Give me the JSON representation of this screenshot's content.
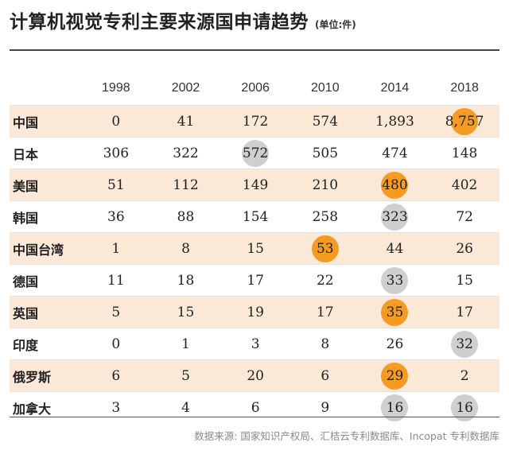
{
  "header": {
    "title": "计算机视觉专利主要来源国申请趋势",
    "unit": "(单位:件)"
  },
  "source": "数据来源: 国家知识产权局、汇桔云专利数据库、Incopat 专利数据库",
  "colors": {
    "band": "#fbe8d6",
    "highlight_orange": "#f59a23",
    "highlight_gray": "#cfcfcf"
  },
  "chart_data": {
    "type": "table",
    "title": "计算机视觉专利主要来源国申请趋势",
    "unit": "(单位:件)",
    "columns": [
      "1998",
      "2002",
      "2006",
      "2010",
      "2014",
      "2018"
    ],
    "rows": [
      {
        "name": "中国",
        "values": [
          "0",
          "41",
          "172",
          "574",
          "1,893",
          "8,757"
        ],
        "highlights": [
          null,
          null,
          null,
          null,
          null,
          "orange"
        ]
      },
      {
        "name": "日本",
        "values": [
          "306",
          "322",
          "572",
          "505",
          "474",
          "148"
        ],
        "highlights": [
          null,
          null,
          "gray",
          null,
          null,
          null
        ]
      },
      {
        "name": "美国",
        "values": [
          "51",
          "112",
          "149",
          "210",
          "480",
          "402"
        ],
        "highlights": [
          null,
          null,
          null,
          null,
          "orange",
          null
        ]
      },
      {
        "name": "韩国",
        "values": [
          "36",
          "88",
          "154",
          "258",
          "323",
          "72"
        ],
        "highlights": [
          null,
          null,
          null,
          null,
          "gray",
          null
        ]
      },
      {
        "name": "中国台湾",
        "values": [
          "1",
          "8",
          "15",
          "53",
          "44",
          "26"
        ],
        "highlights": [
          null,
          null,
          null,
          "orange",
          null,
          null
        ]
      },
      {
        "name": "德国",
        "values": [
          "11",
          "18",
          "17",
          "22",
          "33",
          "15"
        ],
        "highlights": [
          null,
          null,
          null,
          null,
          "gray",
          null
        ]
      },
      {
        "name": "英国",
        "values": [
          "5",
          "15",
          "19",
          "17",
          "35",
          "17"
        ],
        "highlights": [
          null,
          null,
          null,
          null,
          "orange",
          null
        ]
      },
      {
        "name": "印度",
        "values": [
          "0",
          "1",
          "3",
          "8",
          "26",
          "32"
        ],
        "highlights": [
          null,
          null,
          null,
          null,
          null,
          "gray"
        ]
      },
      {
        "name": "俄罗斯",
        "values": [
          "6",
          "5",
          "20",
          "6",
          "29",
          "2"
        ],
        "highlights": [
          null,
          null,
          null,
          null,
          "orange",
          null
        ]
      },
      {
        "name": "加拿大",
        "values": [
          "3",
          "4",
          "6",
          "9",
          "16",
          "16"
        ],
        "highlights": [
          null,
          null,
          null,
          null,
          "gray",
          "gray"
        ]
      }
    ]
  }
}
